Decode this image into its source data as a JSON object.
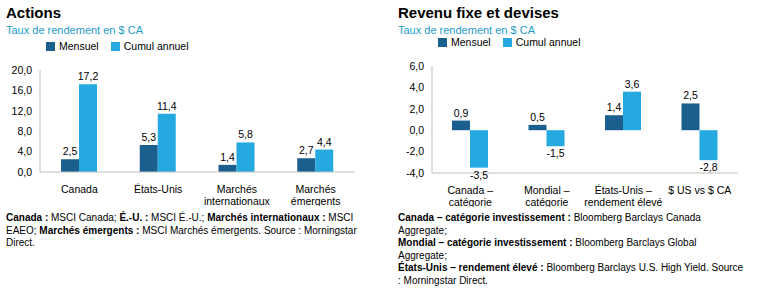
{
  "chart_data": [
    {
      "type": "bar",
      "title": "Actions",
      "subtitle": "Taux de rendement en $ CA",
      "categories": [
        "Canada",
        "États-Unis",
        "Marchés internationaux",
        "Marchés émergents"
      ],
      "series": [
        {
          "name": "Mensuel",
          "color": "#1a5f8e",
          "values": [
            2.5,
            5.3,
            1.4,
            2.7
          ],
          "value_labels": [
            "2,5",
            "5,3",
            "1,4",
            "2,7"
          ]
        },
        {
          "name": "Cumul annuel",
          "color": "#25a9e0",
          "values": [
            17.2,
            11.4,
            5.8,
            4.4
          ],
          "value_labels": [
            "17,2",
            "11,4",
            "5,8",
            "4,4"
          ]
        }
      ],
      "ylim": [
        0,
        20
      ],
      "yticks": [
        {
          "value": 0,
          "label": "0,0"
        },
        {
          "value": 4,
          "label": "4,0"
        },
        {
          "value": 8,
          "label": "8,0"
        },
        {
          "value": 12,
          "label": "12,0"
        },
        {
          "value": 16,
          "label": "16,0"
        },
        {
          "value": 20,
          "label": "20,0"
        }
      ],
      "grid": false,
      "legend": "top",
      "data_labels": true,
      "notes": [
        {
          "label": "Canada :",
          "text": "MSCI Canada;"
        },
        {
          "label": "É.-U. :",
          "text": "MSCI É.-U.;"
        },
        {
          "label": "Marchés internationaux :",
          "text": "MSCI EAEO;"
        },
        {
          "label": "Marchés émergents :",
          "text": "MSCI Marchés émergents. Source : Morningstar Direct."
        }
      ]
    },
    {
      "type": "bar",
      "title": "Revenu fixe et devises",
      "subtitle": "Taux de rendement en $ CA",
      "categories": [
        "Canada – catégorie investissement",
        "Mondial – catégorie investissement",
        "États-Unis – rendement élevé",
        "$ US vs $ CA"
      ],
      "series": [
        {
          "name": "Mensuel",
          "color": "#1a5f8e",
          "values": [
            0.9,
            0.5,
            1.4,
            2.5
          ],
          "value_labels": [
            "0,9",
            "0,5",
            "1,4",
            "2,5"
          ]
        },
        {
          "name": "Cumul annuel",
          "color": "#25a9e0",
          "values": [
            -3.5,
            -1.5,
            3.6,
            -2.8
          ],
          "value_labels": [
            "-3,5",
            "-1,5",
            "3,6",
            "-2,8"
          ]
        }
      ],
      "ylim": [
        -4,
        6
      ],
      "yticks": [
        {
          "value": -4,
          "label": "-4,0"
        },
        {
          "value": -2,
          "label": "-2,0"
        },
        {
          "value": 0,
          "label": "0,0"
        },
        {
          "value": 2,
          "label": "2,0"
        },
        {
          "value": 4,
          "label": "4,0"
        },
        {
          "value": 6,
          "label": "6,0"
        }
      ],
      "grid": false,
      "legend": "top",
      "data_labels": true,
      "notes": [
        {
          "label": "Canada – catégorie investissement :",
          "text": "Bloomberg Barclays Canada Aggregate;"
        },
        {
          "label": "Mondial – catégorie investissement :",
          "text": "Bloomberg Barclays Global Aggregate;"
        },
        {
          "label": "États-Unis – rendement élevé :",
          "text": "Bloomberg Barclays U.S. High Yield. Source : Morningstar Direct."
        }
      ]
    }
  ]
}
